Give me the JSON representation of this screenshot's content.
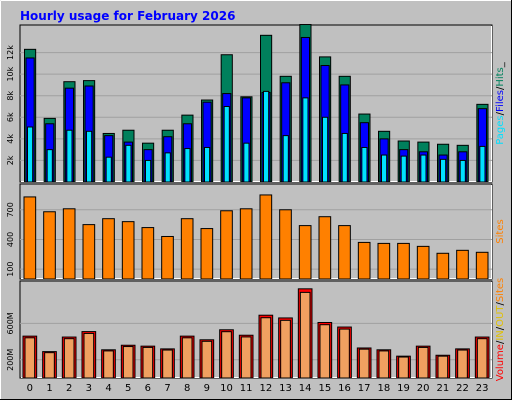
{
  "title": "Hourly usage for February 2026",
  "colors": {
    "background": "#c0c0c0",
    "plot_background": "#c0c0c0",
    "title": "#0000ff",
    "hits": "#00805c",
    "files": "#0000ff",
    "pages": "#00e0ff",
    "sites": "#ff8000",
    "volume": "#ff0000",
    "in": "#e0c000",
    "out": "#e0c000",
    "separator": "#808080"
  },
  "chart_data": [
    {
      "type": "bar",
      "name": "hits-files-pages",
      "categories": [
        "0",
        "1",
        "2",
        "3",
        "4",
        "5",
        "6",
        "7",
        "8",
        "9",
        "10",
        "11",
        "12",
        "13",
        "14",
        "15",
        "16",
        "17",
        "18",
        "19",
        "20",
        "21",
        "22",
        "23"
      ],
      "y_ticks": [
        2000,
        4000,
        6000,
        8000,
        10000,
        12000
      ],
      "y_tick_labels": [
        "2k",
        "4k",
        "6k",
        "8k",
        "10k",
        "12k"
      ],
      "ylim": [
        0,
        14000
      ],
      "legend": [
        "Pages",
        "/",
        "Files",
        "/",
        "Hits",
        "_"
      ],
      "series": [
        {
          "name": "Hits",
          "values": [
            12300,
            5900,
            9300,
            9400,
            4500,
            4800,
            3600,
            4800,
            6200,
            7600,
            11800,
            7900,
            13600,
            9800,
            14600,
            11600,
            9800,
            6300,
            4700,
            3800,
            3700,
            3500,
            3400,
            7200
          ]
        },
        {
          "name": "Files",
          "values": [
            11500,
            5400,
            8700,
            8900,
            4300,
            3700,
            3000,
            4200,
            5400,
            7400,
            8200,
            7800,
            8300,
            9200,
            13400,
            10800,
            9000,
            5500,
            4000,
            3000,
            2800,
            2500,
            2800,
            6800
          ]
        },
        {
          "name": "Pages",
          "values": [
            5100,
            3000,
            4800,
            4700,
            2300,
            3400,
            2000,
            2700,
            3100,
            3200,
            7000,
            3600,
            8400,
            4300,
            7800,
            6000,
            4500,
            3200,
            2500,
            2400,
            2500,
            2100,
            2000,
            3300
          ]
        }
      ]
    },
    {
      "type": "bar",
      "name": "sites",
      "categories": [
        "0",
        "1",
        "2",
        "3",
        "4",
        "5",
        "6",
        "7",
        "8",
        "9",
        "10",
        "11",
        "12",
        "13",
        "14",
        "15",
        "16",
        "17",
        "18",
        "19",
        "20",
        "21",
        "22",
        "23"
      ],
      "y_ticks": [
        100,
        400,
        700
      ],
      "y_tick_labels": [
        "100",
        "400",
        "700"
      ],
      "ylim": [
        0,
        900
      ],
      "legend": [
        "Sites"
      ],
      "series": [
        {
          "name": "Sites",
          "values": [
            830,
            680,
            710,
            550,
            610,
            580,
            520,
            430,
            610,
            510,
            690,
            710,
            850,
            700,
            540,
            630,
            540,
            370,
            360,
            360,
            330,
            260,
            290,
            270
          ]
        }
      ]
    },
    {
      "type": "bar",
      "name": "volume",
      "categories": [
        "0",
        "1",
        "2",
        "3",
        "4",
        "5",
        "6",
        "7",
        "8",
        "9",
        "10",
        "11",
        "12",
        "13",
        "14",
        "15",
        "16",
        "17",
        "18",
        "19",
        "20",
        "21",
        "22",
        "23"
      ],
      "y_ticks": [
        200,
        600
      ],
      "y_tick_labels": [
        "200M",
        "600M"
      ],
      "ylim": [
        0,
        1000
      ],
      "legend": [
        "Volume",
        "/",
        "IN",
        "/",
        "OUT",
        "/",
        "Sites"
      ],
      "series": [
        {
          "name": "Volume",
          "values": [
            460,
            290,
            450,
            510,
            310,
            360,
            350,
            320,
            460,
            420,
            530,
            470,
            690,
            660,
            980,
            610,
            560,
            330,
            310,
            240,
            350,
            250,
            320,
            450
          ]
        }
      ]
    }
  ]
}
